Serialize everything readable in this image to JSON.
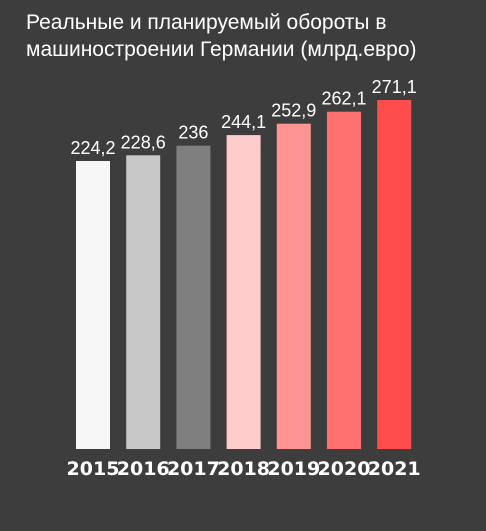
{
  "chart_data": {
    "type": "bar",
    "title": "Реальные и планируемый обороты в машиностроении Германии (млрд.евро)",
    "categories": [
      "2015",
      "2016",
      "2017",
      "2018",
      "2019",
      "2020",
      "2021"
    ],
    "values": [
      224.2,
      228.6,
      236,
      244.1,
      252.9,
      262.1,
      271.1
    ],
    "value_labels": [
      "224,2",
      "228,6",
      "236",
      "244,1",
      "252,9",
      "262,1",
      "271,1"
    ],
    "colors": [
      "#f7f7f7",
      "#c8c8c8",
      "#7f7f7f",
      "#ffcccc",
      "#ff9494",
      "#ff7070",
      "#ff4d4d"
    ],
    "xlabel": "",
    "ylabel": "",
    "grid": false,
    "background": "#3d3d3d"
  }
}
